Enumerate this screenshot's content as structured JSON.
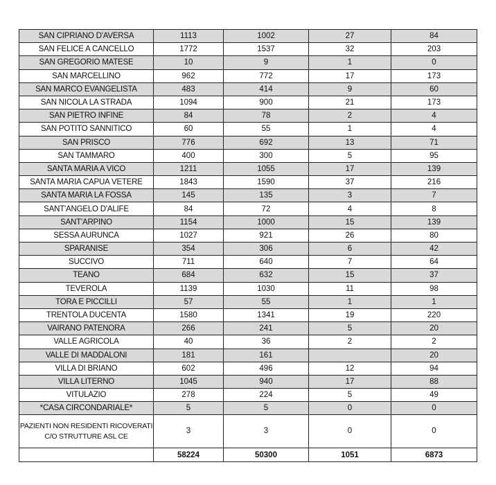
{
  "rows": [
    [
      "SAN CIPRIANO D'AVERSA",
      "1113",
      "1002",
      "27",
      "84"
    ],
    [
      "SAN FELICE A CANCELLO",
      "1772",
      "1537",
      "32",
      "203"
    ],
    [
      "SAN GREGORIO MATESE",
      "10",
      "9",
      "1",
      "0"
    ],
    [
      "SAN MARCELLINO",
      "962",
      "772",
      "17",
      "173"
    ],
    [
      "SAN MARCO EVANGELISTA",
      "483",
      "414",
      "9",
      "60"
    ],
    [
      "SAN NICOLA LA STRADA",
      "1094",
      "900",
      "21",
      "173"
    ],
    [
      "SAN PIETRO INFINE",
      "84",
      "78",
      "2",
      "4"
    ],
    [
      "SAN POTITO SANNITICO",
      "60",
      "55",
      "1",
      "4"
    ],
    [
      "SAN PRISCO",
      "776",
      "692",
      "13",
      "71"
    ],
    [
      "SAN TAMMARO",
      "400",
      "300",
      "5",
      "95"
    ],
    [
      "SANTA MARIA A VICO",
      "1211",
      "1055",
      "17",
      "139"
    ],
    [
      "SANTA MARIA CAPUA VETERE",
      "1843",
      "1590",
      "37",
      "216"
    ],
    [
      "SANTA MARIA LA FOSSA",
      "145",
      "135",
      "3",
      "7"
    ],
    [
      "SANT'ANGELO D'ALIFE",
      "84",
      "72",
      "4",
      "8"
    ],
    [
      "SANT'ARPINO",
      "1154",
      "1000",
      "15",
      "139"
    ],
    [
      "SESSA AURUNCA",
      "1027",
      "921",
      "26",
      "80"
    ],
    [
      "SPARANISE",
      "354",
      "306",
      "6",
      "42"
    ],
    [
      "SUCCIVO",
      "711",
      "640",
      "7",
      "64"
    ],
    [
      "TEANO",
      "684",
      "632",
      "15",
      "37"
    ],
    [
      "TEVEROLA",
      "1139",
      "1030",
      "11",
      "98"
    ],
    [
      "TORA E PICCILLI",
      "57",
      "55",
      "1",
      "1"
    ],
    [
      "TRENTOLA DUCENTA",
      "1580",
      "1341",
      "19",
      "220"
    ],
    [
      "VAIRANO PATENORA",
      "266",
      "241",
      "5",
      "20"
    ],
    [
      "VALLE AGRICOLA",
      "40",
      "36",
      "2",
      "2"
    ],
    [
      "VALLE DI MADDALONI",
      "181",
      "161",
      "",
      "20"
    ],
    [
      "VILLA DI BRIANO",
      "602",
      "496",
      "12",
      "94"
    ],
    [
      "VILLA LITERNO",
      "1045",
      "940",
      "17",
      "88"
    ],
    [
      "VITULAZIO",
      "278",
      "224",
      "5",
      "49"
    ],
    [
      "*CASA CIRCONDARIALE*",
      "5",
      "5",
      "0",
      "0"
    ],
    [
      "PAZIENTI NON RESIDENTI RICOVERATI C/O STRUTTURE ASL CE",
      "3",
      "3",
      "0",
      "0"
    ]
  ],
  "totals": [
    "",
    "58224",
    "50300",
    "1051",
    "6873"
  ],
  "colors": {
    "stripe": "#d9d9d9",
    "border": "#222222"
  }
}
